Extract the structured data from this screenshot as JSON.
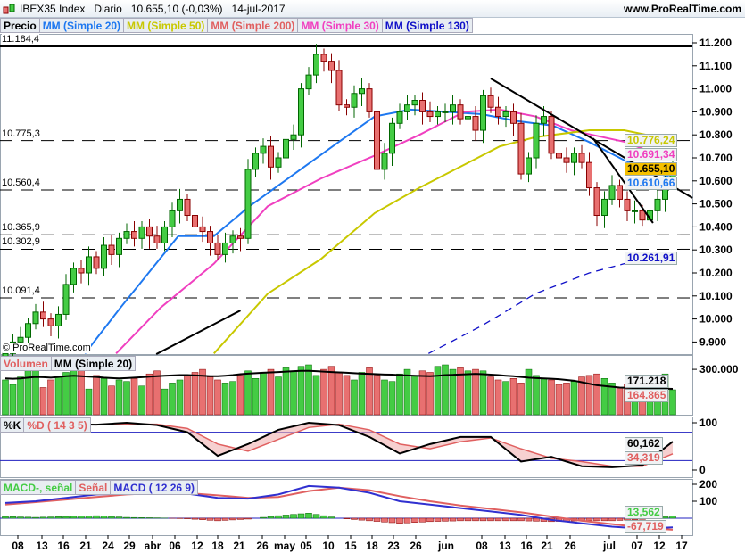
{
  "header": {
    "instrument": "IBEX35 Index",
    "period": "Diario",
    "price": "10.655,10 (-0,03%)",
    "date": "14-jul-2017",
    "site": "www.ProRealTime.com"
  },
  "copyright": "© ProRealTime.com",
  "legend": {
    "price": "Precio",
    "ma20": "MM (Simple 20)",
    "ma50": "MM (Simple 50)",
    "ma200": "MM (Simple 200)",
    "ma30": "MM (Simple 30)",
    "ma130": "MM (Simple 130)",
    "volume": "Volumen",
    "vol_ma": "MM (Simple 20)",
    "k": "%K",
    "d": "%D ( 14 3 5)",
    "macd_hist": "MACD-, señal",
    "signal": "Señal",
    "macd": "MACD ( 12 26 9)"
  },
  "colors": {
    "up": "#44cc44",
    "down": "#e87070",
    "ma20": "#1e78f0",
    "ma50": "#c8c800",
    "ma200": "#e06060",
    "ma30": "#f040c0",
    "ma130": "#1010c8",
    "hline": "#e00000"
  },
  "tags": {
    "ma50": "10.776,24",
    "ma30": "10.691,34",
    "last": "10.655,10",
    "ma20": "10.610,66",
    "ma130": "10.261,91",
    "vol_ma": "171.218",
    "vol": "164.865",
    "k": "60,162",
    "d": "34,319",
    "hist": "13,562",
    "signal": "-67,719"
  },
  "chart_data": [
    {
      "type": "candlestick",
      "title": "IBEX35 Index",
      "ylim": [
        9.85,
        11.25
      ],
      "yticks": [
        "11.200",
        "11.100",
        "11.000",
        "10.900",
        "10.800",
        "10.700",
        "10.600",
        "10.500",
        "10.400",
        "10.300",
        "10.200",
        "10.100",
        "10.000",
        "9.900"
      ],
      "xticks": [
        "08",
        "13",
        "16",
        "21",
        "24",
        "29",
        "abr",
        "06",
        "12",
        "18",
        "21",
        "26",
        "may",
        "05",
        "10",
        "15",
        "18",
        "23",
        "26",
        "jun",
        "08",
        "13",
        "16",
        "21",
        "26",
        "jul",
        "07",
        "12",
        "17"
      ],
      "closes": [
        9.85,
        9.9,
        9.92,
        9.98,
        10.03,
        10.0,
        9.97,
        10.02,
        10.15,
        10.22,
        10.2,
        10.27,
        10.22,
        10.32,
        10.28,
        10.35,
        10.38,
        10.35,
        10.4,
        10.36,
        10.33,
        10.4,
        10.47,
        10.52,
        10.45,
        10.4,
        10.38,
        10.33,
        10.28,
        10.33,
        10.36,
        10.35,
        10.65,
        10.72,
        10.75,
        10.66,
        10.7,
        10.78,
        10.8,
        11.0,
        11.06,
        11.15,
        11.12,
        11.08,
        10.93,
        10.92,
        10.98,
        11.0,
        10.9,
        10.65,
        10.72,
        10.85,
        10.9,
        10.93,
        10.95,
        10.9,
        10.88,
        10.9,
        10.9,
        10.93,
        10.87,
        10.88,
        10.82,
        10.97,
        10.92,
        10.88,
        10.9,
        10.85,
        10.63,
        10.7,
        10.85,
        10.88,
        10.72,
        10.7,
        10.68,
        10.72,
        10.68,
        10.57,
        10.45,
        10.52,
        10.58,
        10.52,
        10.47,
        10.47,
        10.43,
        10.47,
        10.52,
        10.61,
        10.655
      ],
      "levels": [
        {
          "label": "11.184,4",
          "value": 11.1844,
          "solid": true
        },
        {
          "label": "10.775,3",
          "value": 10.7753
        },
        {
          "label": "10.560,4",
          "value": 10.5604
        },
        {
          "label": "10.365,9",
          "value": 10.3659
        },
        {
          "label": "10.302,9",
          "value": 10.3029
        },
        {
          "label": "10.091,4",
          "value": 10.0914
        }
      ],
      "trendlines": [
        [
          [
            64,
            11.045
          ],
          [
            90.6,
            10.526
          ]
        ],
        [
          [
            77.5,
            10.785
          ],
          [
            85.4,
            10.417
          ]
        ],
        [
          [
            19.9,
            9.847
          ],
          [
            31,
            10.037
          ]
        ]
      ],
      "series": [
        {
          "name": "MM (Simple 20)",
          "color": "#1e78f0",
          "points": [
            [
              10.5,
              9.85
            ],
            [
              15.2,
              10.05
            ],
            [
              22.8,
              10.36
            ],
            [
              27.5,
              10.36
            ],
            [
              32.2,
              10.49
            ],
            [
              38.1,
              10.63
            ],
            [
              44,
              10.77
            ],
            [
              48.7,
              10.88
            ],
            [
              53.4,
              10.91
            ],
            [
              58.1,
              10.9
            ],
            [
              62.8,
              10.89
            ],
            [
              67.5,
              10.86
            ],
            [
              72.2,
              10.84
            ],
            [
              76.9,
              10.77
            ],
            [
              81.6,
              10.69
            ],
            [
              86.4,
              10.63
            ],
            [
              88,
              10.61
            ]
          ]
        },
        {
          "name": "MM (Simple 30)",
          "color": "#f040c0",
          "points": [
            [
              14.6,
              9.85
            ],
            [
              20.5,
              10.05
            ],
            [
              27.5,
              10.24
            ],
            [
              34.6,
              10.49
            ],
            [
              41.6,
              10.61
            ],
            [
              48.7,
              10.71
            ],
            [
              54.6,
              10.8
            ],
            [
              60.5,
              10.9
            ],
            [
              65.2,
              10.91
            ],
            [
              69.9,
              10.88
            ],
            [
              74.6,
              10.82
            ],
            [
              81.6,
              10.77
            ],
            [
              88,
              10.69
            ]
          ]
        },
        {
          "name": "MM (Simple 50)",
          "color": "#c8c800",
          "points": [
            [
              27.5,
              9.85
            ],
            [
              34.6,
              10.11
            ],
            [
              41.6,
              10.26
            ],
            [
              48.7,
              10.46
            ],
            [
              54.6,
              10.57
            ],
            [
              60.5,
              10.67
            ],
            [
              65.2,
              10.75
            ],
            [
              69.9,
              10.79
            ],
            [
              77,
              10.82
            ],
            [
              81.6,
              10.82
            ],
            [
              88,
              10.776
            ]
          ]
        },
        {
          "name": "MM (Simple 130)",
          "color": "#1010c8",
          "dashed": true,
          "points": [
            [
              55.8,
              9.85
            ],
            [
              62.8,
              9.97
            ],
            [
              69.9,
              10.11
            ],
            [
              77,
              10.2
            ],
            [
              81.6,
              10.24
            ],
            [
              88,
              10.26
            ]
          ]
        }
      ]
    },
    {
      "type": "bar",
      "title": "Volumen",
      "ytick": "300.000",
      "ylim": [
        0,
        330000
      ],
      "values": [
        230,
        200,
        250,
        290,
        300,
        180,
        230,
        250,
        280,
        300,
        310,
        170,
        260,
        240,
        190,
        230,
        220,
        240,
        190,
        270,
        290,
        170,
        210,
        230,
        260,
        280,
        300,
        250,
        230,
        210,
        220,
        260,
        290,
        240,
        280,
        300,
        250,
        310,
        290,
        320,
        330,
        260,
        300,
        320,
        280,
        260,
        230,
        280,
        310,
        260,
        230,
        220,
        270,
        300,
        260,
        290,
        280,
        320,
        330,
        300,
        310,
        290,
        300,
        290,
        250,
        230,
        220,
        240,
        210,
        300,
        260,
        240,
        230,
        200,
        210,
        220,
        250,
        260,
        270,
        240,
        210,
        180,
        200,
        210,
        220,
        240,
        260,
        270,
        165
      ],
      "ma": [
        240,
        238,
        240,
        245,
        250,
        248,
        245,
        250,
        255,
        258,
        255,
        252,
        250,
        245,
        242,
        240,
        242,
        245,
        248,
        252,
        255,
        258,
        260,
        262,
        262,
        260,
        258,
        255,
        255,
        258,
        262,
        268,
        272,
        275,
        278,
        280,
        282,
        285,
        288,
        290,
        290,
        288,
        285,
        282,
        280,
        278,
        275,
        272,
        270,
        268,
        266,
        265,
        262,
        260,
        258,
        256,
        255,
        258,
        262,
        264,
        266,
        268,
        270,
        268,
        265,
        262,
        258,
        255,
        250,
        245,
        242,
        240,
        238,
        235,
        230,
        225,
        215,
        205,
        195,
        190,
        185,
        180,
        178,
        176,
        175,
        174,
        173,
        172,
        171.2
      ]
    },
    {
      "type": "line",
      "title": "%D ( 14 3 5)",
      "yticks": [
        "100",
        "0"
      ],
      "ylim": [
        0,
        100
      ],
      "bands": [
        80,
        20
      ],
      "step": 4,
      "k": [
        92,
        95,
        97,
        96,
        100,
        95,
        80,
        30,
        55,
        85,
        100,
        95,
        70,
        35,
        55,
        70,
        70,
        18,
        28,
        8,
        6,
        10,
        60.2
      ],
      "d": [
        88,
        92,
        95,
        96,
        97,
        97,
        88,
        55,
        40,
        65,
        90,
        97,
        85,
        55,
        45,
        60,
        68,
        45,
        25,
        18,
        8,
        8,
        34.3
      ]
    },
    {
      "type": "line",
      "title": "MACD ( 12 26 9)",
      "yticks": [
        "200",
        "100"
      ],
      "ylim": [
        -80,
        220
      ],
      "step": 4,
      "macd": [
        90,
        100,
        120,
        140,
        145,
        150,
        145,
        120,
        115,
        140,
        190,
        180,
        150,
        100,
        80,
        60,
        40,
        20,
        -10,
        -30,
        -50,
        -62,
        -54.2
      ],
      "signal": [
        80,
        95,
        110,
        125,
        140,
        148,
        148,
        135,
        120,
        125,
        160,
        180,
        165,
        130,
        100,
        75,
        55,
        35,
        10,
        -15,
        -35,
        -55,
        -67.7
      ]
    }
  ]
}
